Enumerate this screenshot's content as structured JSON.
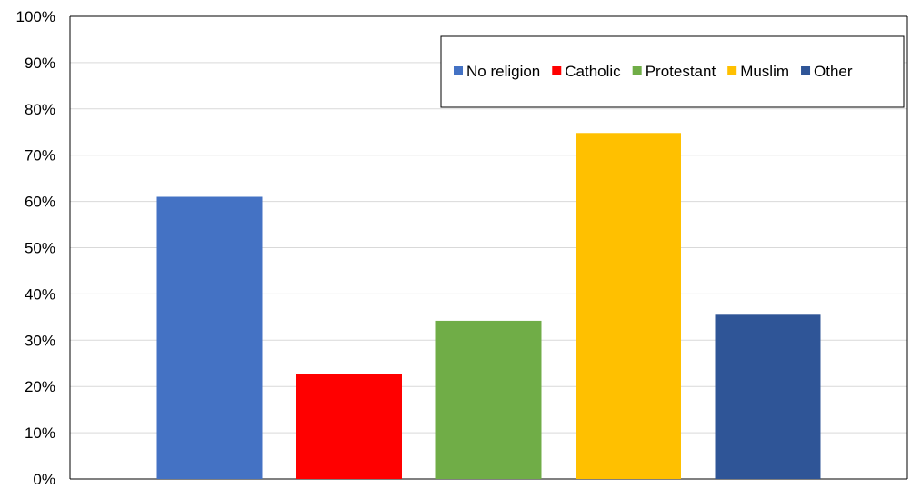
{
  "chart_data": {
    "type": "bar",
    "title": "",
    "xlabel": "",
    "ylabel": "",
    "categories": [
      "No religion",
      "Catholic",
      "Protestant",
      "Muslim",
      "Other"
    ],
    "values": [
      0.61,
      0.227,
      0.342,
      0.748,
      0.355
    ],
    "colors": [
      "#4472C4",
      "#FF0000",
      "#70AD47",
      "#FFC000",
      "#2F5597"
    ],
    "ylim": [
      0,
      1
    ],
    "y_ticks": [
      "0%",
      "10%",
      "20%",
      "30%",
      "40%",
      "50%",
      "60%",
      "70%",
      "80%",
      "90%",
      "100%"
    ],
    "grid": true,
    "legend": {
      "position": "top-right",
      "entries": [
        "No religion",
        "Catholic",
        "Protestant",
        "Muslim",
        "Other"
      ]
    }
  }
}
